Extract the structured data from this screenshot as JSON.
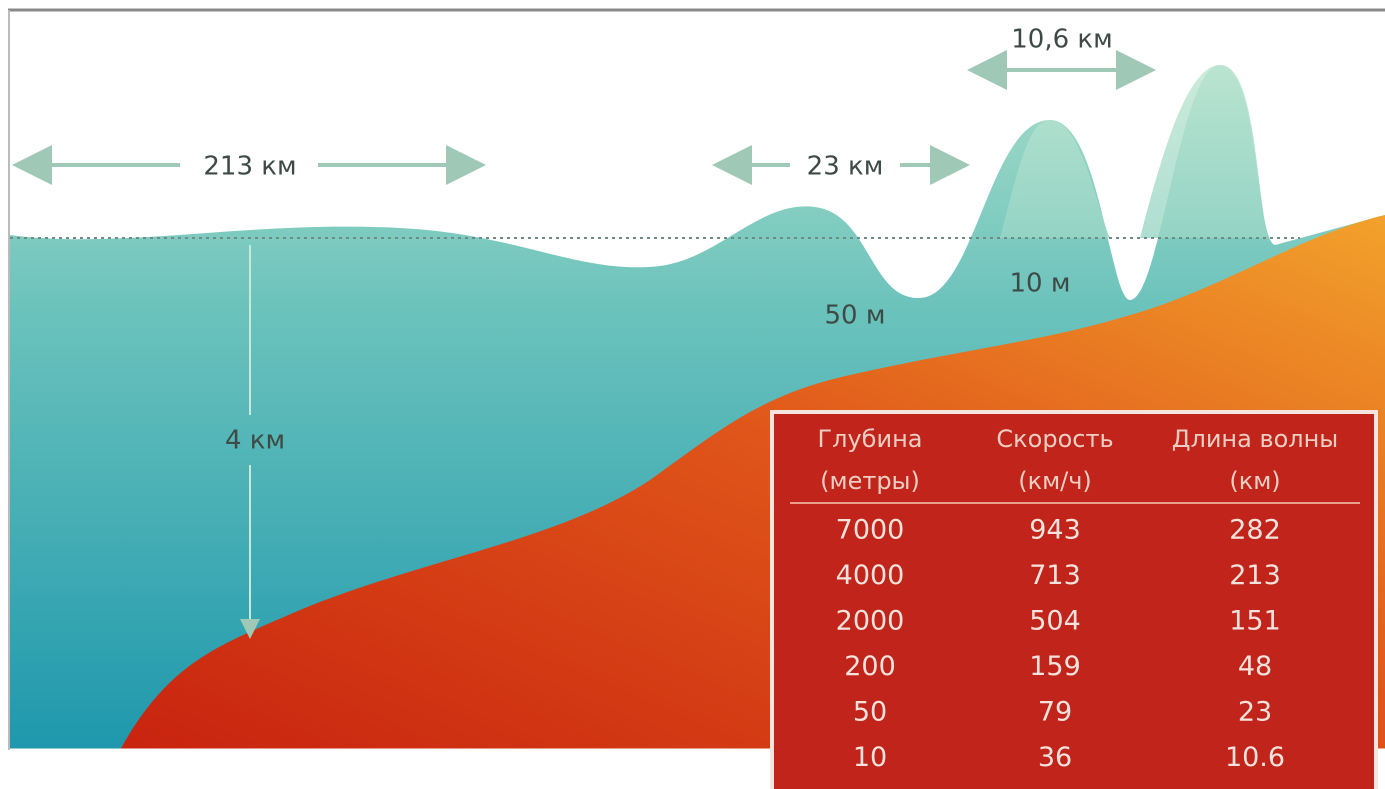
{
  "labels": {
    "wave_long": "213 км",
    "wave_mid": "23 км",
    "wave_short": "10,6 км",
    "depth": "4 км",
    "height_mid": "50 м",
    "height_short": "10 м"
  },
  "table": {
    "header": [
      [
        "Глубина",
        "(метры)"
      ],
      [
        "Скорость",
        "(км/ч)"
      ],
      [
        "Длина волны",
        "(км)"
      ]
    ],
    "rows": [
      [
        "7000",
        "943",
        "282"
      ],
      [
        "4000",
        "713",
        "213"
      ],
      [
        "2000",
        "504",
        "151"
      ],
      [
        "200",
        "159",
        "48"
      ],
      [
        "50",
        "79",
        "23"
      ],
      [
        "10",
        "36",
        "10.6"
      ]
    ]
  }
}
